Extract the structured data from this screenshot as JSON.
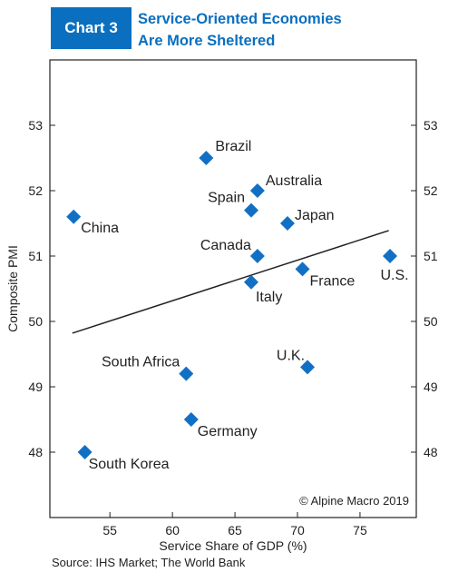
{
  "header": {
    "badge": "Chart 3",
    "title_line1": "Service-Oriented Economies",
    "title_line2": "Are More Sheltered"
  },
  "source": "Source: IHS Market; The World Bank",
  "colors": {
    "accent": "#0a6fbf",
    "marker": "#1270c4",
    "line": "#222222"
  },
  "chart_data": {
    "type": "scatter",
    "xlabel": "Service Share of GDP (%)",
    "ylabel": "Composite PMI",
    "xlim": [
      50.2,
      79.5
    ],
    "ylim": [
      47.0,
      54.0
    ],
    "xticks": [
      55,
      60,
      65,
      70,
      75
    ],
    "yticks": [
      48,
      49,
      50,
      51,
      52,
      53
    ],
    "y_axis_both_sides": true,
    "grid": false,
    "marker": "diamond",
    "annotation": "© Alpine Macro 2019",
    "points": [
      {
        "label": "Brazil",
        "x": 62.7,
        "y": 52.5
      },
      {
        "label": "Australia",
        "x": 66.8,
        "y": 52.0
      },
      {
        "label": "Spain",
        "x": 66.3,
        "y": 51.7
      },
      {
        "label": "Japan",
        "x": 69.2,
        "y": 51.5
      },
      {
        "label": "China",
        "x": 52.1,
        "y": 51.6
      },
      {
        "label": "Canada",
        "x": 66.8,
        "y": 51.0
      },
      {
        "label": "U.S.",
        "x": 77.4,
        "y": 51.0
      },
      {
        "label": "France",
        "x": 70.4,
        "y": 50.8
      },
      {
        "label": "Italy",
        "x": 66.3,
        "y": 50.6
      },
      {
        "label": "South Africa",
        "x": 61.1,
        "y": 49.2
      },
      {
        "label": "U.K.",
        "x": 70.8,
        "y": 49.3
      },
      {
        "label": "Germany",
        "x": 61.5,
        "y": 48.5
      },
      {
        "label": "South Korea",
        "x": 53.0,
        "y": 48.0
      }
    ],
    "trendline": {
      "x": [
        52.0,
        77.3
      ],
      "y": [
        49.82,
        51.39
      ]
    }
  }
}
